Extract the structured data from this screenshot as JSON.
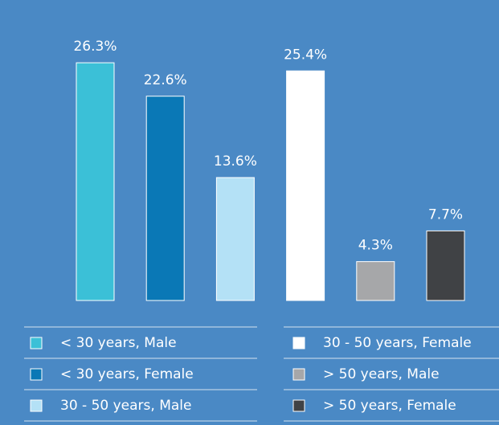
{
  "chart_data": {
    "type": "bar",
    "categories": [
      "< 30 years, Male",
      "< 30 years, Female",
      "30 - 50 years, Male",
      "30 - 50 years, Female",
      "> 50 years, Male",
      "> 50 years, Female"
    ],
    "values": [
      26.3,
      22.6,
      13.6,
      25.4,
      4.3,
      7.7
    ],
    "value_labels": [
      "26.3%",
      "22.6%",
      "13.6%",
      "25.4%",
      "4.3%",
      "7.7%"
    ],
    "colors": [
      "#3bc0d7",
      "#0a78b6",
      "#b4e1f6",
      "#ffffff",
      "#a6a7a9",
      "#404245"
    ]
  }
}
